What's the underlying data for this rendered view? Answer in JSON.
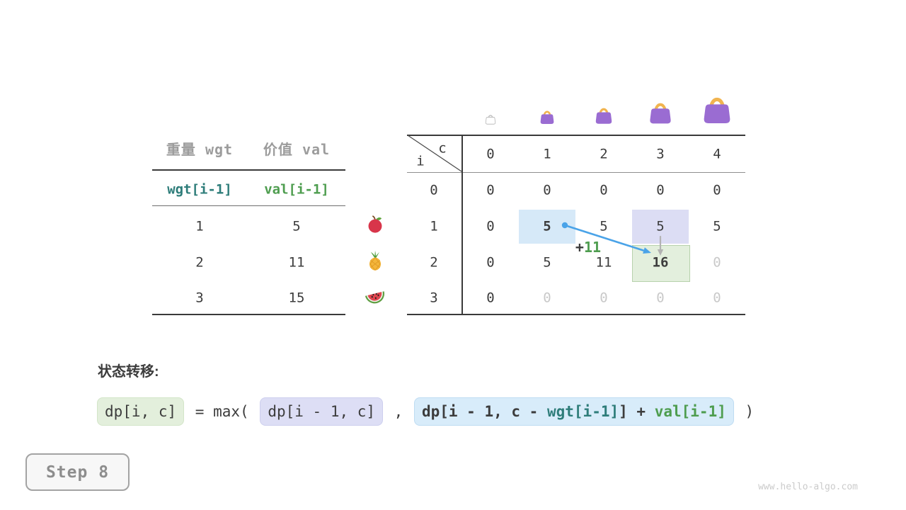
{
  "page": {
    "step_label": "Step 8",
    "watermark": "www.hello-algo.com"
  },
  "items_table": {
    "col_headers": [
      "重量 wgt",
      "价值 val"
    ],
    "sub_headers": [
      "wgt[i-1]",
      "val[i-1]"
    ],
    "rows": [
      {
        "wgt": "1",
        "val": "5",
        "icon": "apple"
      },
      {
        "wgt": "2",
        "val": "11",
        "icon": "pineapple"
      },
      {
        "wgt": "3",
        "val": "15",
        "icon": "watermelon"
      }
    ]
  },
  "dp_table": {
    "corner": {
      "row_var": "i",
      "col_var": "c"
    },
    "col_headers": [
      "0",
      "1",
      "2",
      "3",
      "4"
    ],
    "row_headers": [
      "0",
      "1",
      "2",
      "3"
    ],
    "cells": [
      [
        "0",
        "0",
        "0",
        "0",
        "0"
      ],
      [
        "0",
        "5",
        "5",
        "5",
        "5"
      ],
      [
        "0",
        "5",
        "11",
        "16",
        "0"
      ],
      [
        "0",
        "0",
        "0",
        "0",
        "0"
      ]
    ],
    "bold_cells": [
      [
        1,
        1
      ],
      [
        2,
        3
      ]
    ],
    "faded_cells": [
      [
        2,
        4
      ],
      [
        3,
        1
      ],
      [
        3,
        2
      ],
      [
        3,
        3
      ],
      [
        3,
        4
      ]
    ],
    "highlights": [
      {
        "row": 1,
        "col": 1,
        "type": "blue"
      },
      {
        "row": 1,
        "col": 3,
        "type": "purple"
      },
      {
        "row": 2,
        "col": 3,
        "type": "green"
      }
    ],
    "bags": [
      {
        "capacity": 0,
        "empty": true
      },
      {
        "capacity": 1,
        "empty": false
      },
      {
        "capacity": 2,
        "empty": false
      },
      {
        "capacity": 3,
        "empty": false
      },
      {
        "capacity": 4,
        "empty": false
      }
    ],
    "transition_label": {
      "plus": "+",
      "value": "11"
    }
  },
  "formula": {
    "title": "状态转移:",
    "segments": [
      {
        "text": "dp[i, c]",
        "chip": "green"
      },
      {
        "text": " = max( ",
        "chip": null
      },
      {
        "text": "dp[i - 1, c]",
        "chip": "purple"
      },
      {
        "text": " , ",
        "chip": null
      },
      {
        "chip": "blue",
        "bold": true,
        "parts": [
          {
            "text": "dp[i - 1, c - ",
            "color": "dark"
          },
          {
            "text": "wgt[i-1]",
            "color": "teal"
          },
          {
            "text": "] + ",
            "color": "dark"
          },
          {
            "text": "val[i-1]",
            "color": "green"
          }
        ]
      },
      {
        "text": " )",
        "chip": null
      }
    ]
  },
  "colors": {
    "text-dark": "#3c3c3c",
    "text-gray": "#9c9c9c",
    "text-faded": "#c9c9c9",
    "teal": "#2e7d7a",
    "green": "#4e9d4f",
    "arrow-blue": "#4aa3e8",
    "arrow-gray": "#b3b3b3",
    "hl-blue": "#d6e9f8",
    "hl-purple": "#dcddf4",
    "hl-green": "#e3efdd",
    "hl-green-border": "#b7d1ac",
    "chip-green": "#e3efdc",
    "chip-purple": "#dddef5",
    "chip-blue": "#d8ecfa",
    "line-dark": "#3a3a3a",
    "line-light": "#8f8f8f",
    "bag-purple": "#9a6cd2",
    "bag-handle": "#f1b44f",
    "ghost": "#bdbdbd",
    "step-border": "#a3a3a3",
    "step-text": "#8d8d8d",
    "step-bg": "#f7f7f7",
    "watermark": "#cbcbcb"
  }
}
